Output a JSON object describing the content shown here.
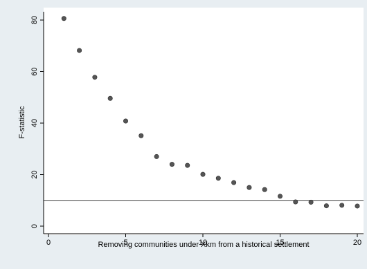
{
  "chart_data": {
    "type": "scatter",
    "xlabel": "Removing communities under Xkm from a historical settlement",
    "ylabel": "F-statistic",
    "xlim": [
      0,
      20
    ],
    "ylim": [
      0,
      80
    ],
    "xticks": [
      0,
      5,
      10,
      15,
      20
    ],
    "yticks": [
      0,
      20,
      40,
      60,
      80
    ],
    "grid": false,
    "reference_line_y": 10,
    "colors": {
      "page_background": "#e8eef2",
      "plot_background": "#ffffff",
      "marker": "#555555"
    },
    "series": [
      {
        "x": [
          1,
          2,
          3,
          4,
          5,
          6,
          7,
          8,
          9,
          10,
          11,
          12,
          13,
          14,
          15,
          16,
          17,
          18,
          19,
          20
        ],
        "y": [
          80.6,
          68.2,
          57.8,
          49.6,
          40.8,
          35.1,
          27.0,
          24.0,
          23.6,
          20.1,
          18.6,
          16.9,
          15.0,
          14.2,
          11.6,
          9.4,
          9.3,
          7.9,
          8.1,
          7.8
        ]
      }
    ]
  }
}
